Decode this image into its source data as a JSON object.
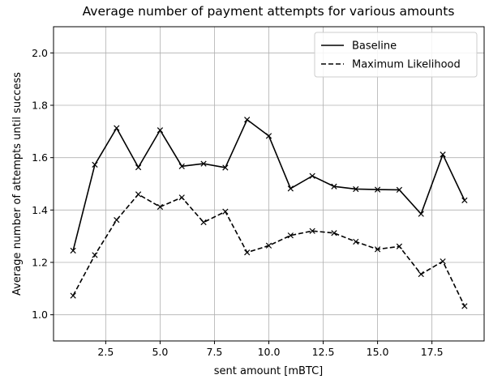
{
  "chart_data": {
    "type": "line",
    "title": "Average number of payment attempts for various amounts",
    "xlabel": "sent amount [mBTC]",
    "ylabel": "Average number of attempts until success",
    "xlim": [
      0.1,
      19.9
    ],
    "ylim": [
      0.9,
      2.1
    ],
    "xticks": [
      "2.5",
      "5.0",
      "7.5",
      "10.0",
      "12.5",
      "15.0",
      "17.5"
    ],
    "yticks": [
      "1.0",
      "1.2",
      "1.4",
      "1.6",
      "1.8",
      "2.0"
    ],
    "grid": true,
    "legend_position": "top-right",
    "x": [
      1,
      2,
      3,
      4,
      5,
      6,
      7,
      8,
      9,
      10,
      11,
      12,
      13,
      14,
      15,
      16,
      17,
      18,
      19
    ],
    "series": [
      {
        "name": "Baseline",
        "line_style": "solid",
        "marker": "x",
        "color": "#000000",
        "values": [
          1.245,
          1.573,
          1.713,
          1.563,
          1.705,
          1.567,
          1.577,
          1.562,
          1.745,
          1.683,
          1.482,
          1.53,
          1.49,
          1.48,
          1.478,
          1.477,
          1.385,
          1.612,
          1.437
        ]
      },
      {
        "name": "Maximum Likelihood",
        "line_style": "dashed",
        "marker": "x",
        "color": "#000000",
        "values": [
          1.073,
          1.228,
          1.362,
          1.46,
          1.412,
          1.448,
          1.353,
          1.394,
          1.238,
          1.264,
          1.303,
          1.32,
          1.312,
          1.279,
          1.25,
          1.261,
          1.155,
          1.204,
          1.033
        ]
      }
    ]
  }
}
